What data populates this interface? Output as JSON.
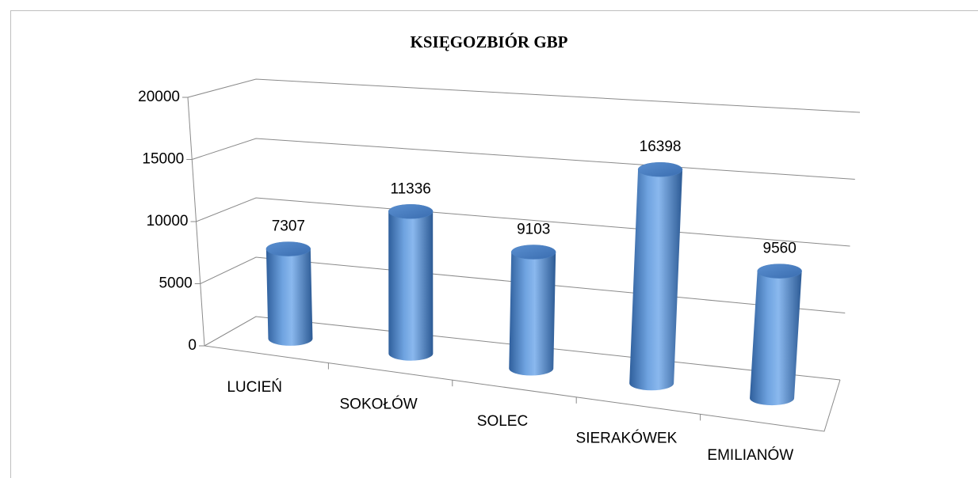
{
  "chart_data": {
    "type": "bar3d",
    "title": "KSIĘGOZBIÓR GBP",
    "categories": [
      "LUCIEŃ",
      "SOKOŁÓW",
      "SOLEC",
      "SIERAKÓWEK",
      "EMILIANÓW"
    ],
    "values": [
      7307,
      11336,
      9103,
      16398,
      9560
    ],
    "color": "#4f81bd",
    "ylim": [
      0,
      20000
    ],
    "yticks": [
      0,
      5000,
      10000,
      15000,
      20000
    ],
    "grid": true
  }
}
